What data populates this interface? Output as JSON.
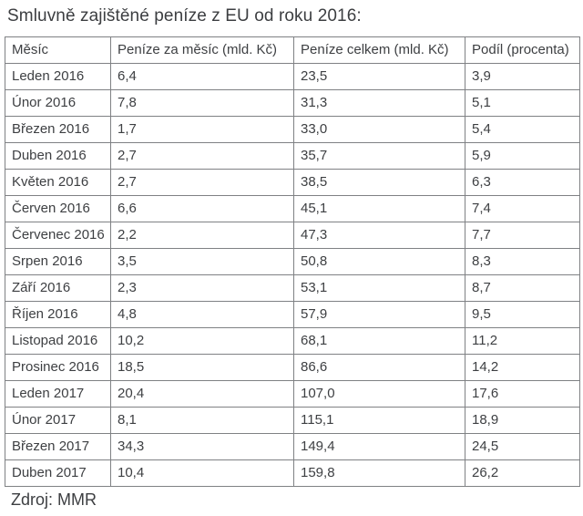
{
  "title": "Smluvně zajištěné peníze z EU od roku 2016:",
  "source": "Zdroj: MMR",
  "colors": {
    "text": "#3d3f42",
    "border": "#7f8184",
    "background": "#ffffff"
  },
  "chart_data": {
    "type": "table",
    "title": "Smluvně zajištěné peníze z EU od roku 2016:",
    "columns": [
      "Měsíc",
      "Peníze za měsíc (mld. Kč)",
      "Peníze celkem (mld. Kč)",
      "Podíl (procenta)"
    ],
    "rows": [
      [
        "Leden 2016",
        "6,4",
        "23,5",
        "3,9"
      ],
      [
        "Únor 2016",
        "7,8",
        "31,3",
        "5,1"
      ],
      [
        "Březen 2016",
        "1,7",
        "33,0",
        "5,4"
      ],
      [
        "Duben 2016",
        "2,7",
        "35,7",
        "5,9"
      ],
      [
        "Květen 2016",
        "2,7",
        "38,5",
        "6,3"
      ],
      [
        "Červen 2016",
        "6,6",
        "45,1",
        "7,4"
      ],
      [
        "Červenec 2016",
        "2,2",
        "47,3",
        "7,7"
      ],
      [
        "Srpen 2016",
        "3,5",
        "50,8",
        "8,3"
      ],
      [
        "Září 2016",
        "2,3",
        "53,1",
        "8,7"
      ],
      [
        "Říjen 2016",
        "4,8",
        "57,9",
        "9,5"
      ],
      [
        "Listopad 2016",
        "10,2",
        "68,1",
        "11,2"
      ],
      [
        "Prosinec 2016",
        "18,5",
        "86,6",
        "14,2"
      ],
      [
        "Leden 2017",
        "20,4",
        "107,0",
        "17,6"
      ],
      [
        "Únor 2017",
        "8,1",
        "115,1",
        "18,9"
      ],
      [
        "Březen 2017",
        "34,3",
        "149,4",
        "24,5"
      ],
      [
        "Duben 2017",
        "10,4",
        "159,8",
        "26,2"
      ]
    ],
    "source": "Zdroj: MMR",
    "units": "mld. Kč / procenta",
    "grid": true,
    "legend_position": "none"
  }
}
